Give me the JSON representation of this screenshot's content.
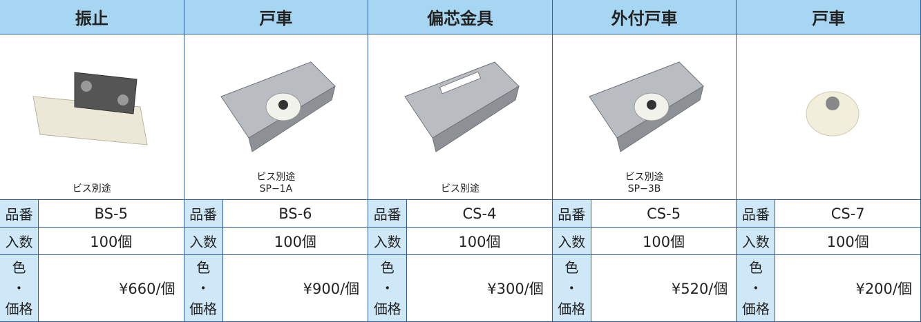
{
  "labels": {
    "code": "品番",
    "quantity": "入数",
    "price": [
      "色",
      "・",
      "価格"
    ]
  },
  "products": [
    {
      "name": "振止",
      "note": [
        "ビス別途"
      ],
      "code": "BS-5",
      "quantity": "100個",
      "price": "¥660/個"
    },
    {
      "name": "戸車",
      "note": [
        "ビス別途",
        "SP−1A"
      ],
      "code": "BS-6",
      "quantity": "100個",
      "price": "¥900/個"
    },
    {
      "name": "偏芯金具",
      "note": [
        "ビス別途"
      ],
      "code": "CS-4",
      "quantity": "100個",
      "price": "¥300/個"
    },
    {
      "name": "外付戸車",
      "note": [
        "ビス別途",
        "SP−3B"
      ],
      "code": "CS-5",
      "quantity": "100個",
      "price": "¥520/個"
    },
    {
      "name": "戸車",
      "note": [],
      "code": "CS-7",
      "quantity": "100個",
      "price": "¥200/個"
    }
  ]
}
